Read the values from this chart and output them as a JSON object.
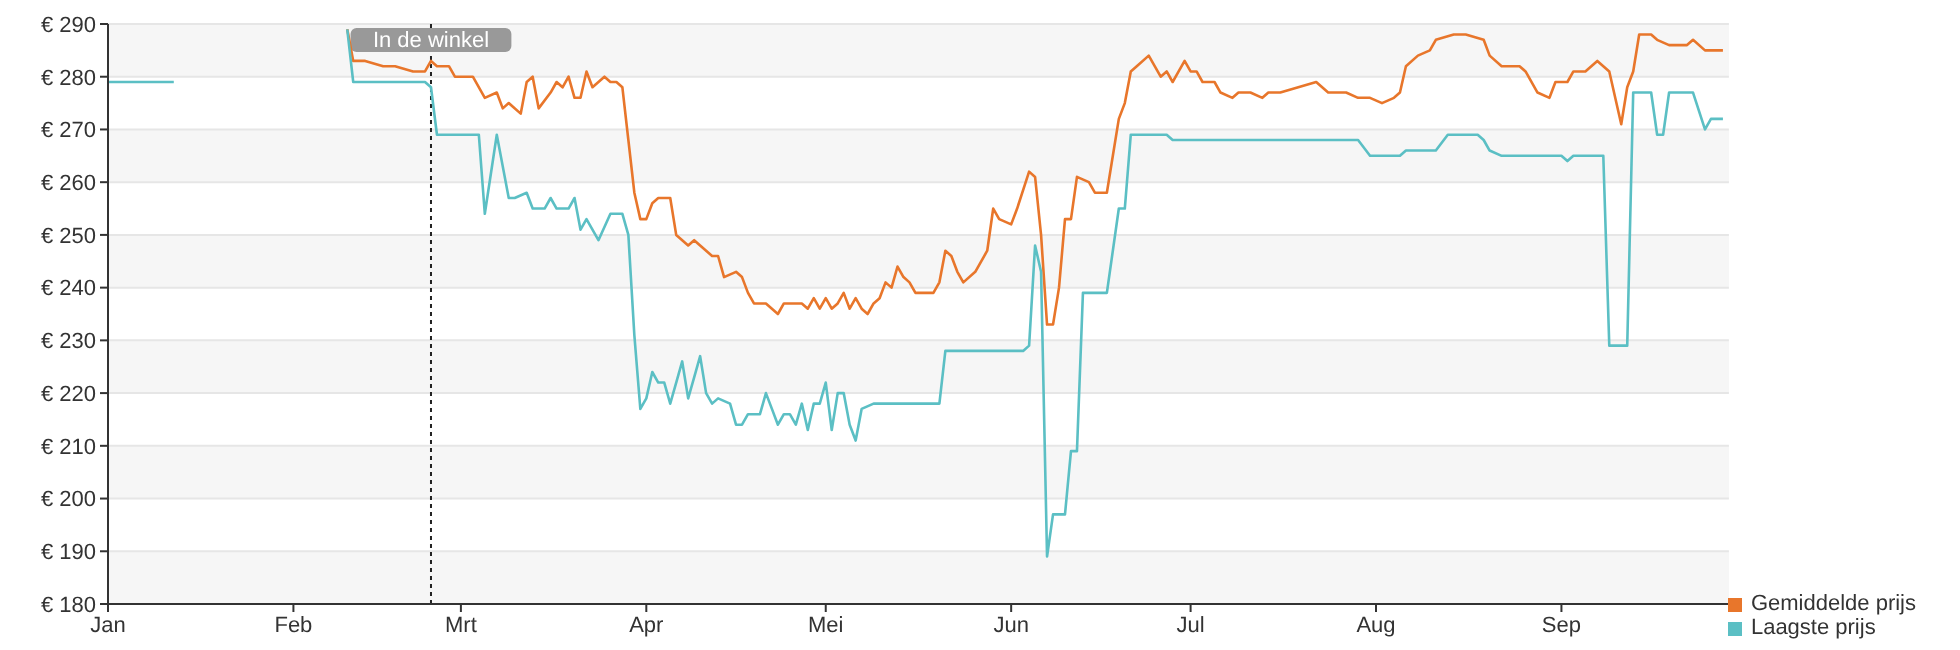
{
  "chart_data": {
    "type": "line",
    "xlim": [
      "--01-01",
      "--09-29"
    ],
    "xticks": [
      {
        "value": "--01-01",
        "label": "Jan"
      },
      {
        "value": "--02-01",
        "label": "Feb"
      },
      {
        "value": "--03-01",
        "label": "Mrt"
      },
      {
        "value": "--04-01",
        "label": "Apr"
      },
      {
        "value": "--05-01",
        "label": "Mei"
      },
      {
        "value": "--06-01",
        "label": "Jun"
      },
      {
        "value": "--07-01",
        "label": "Jul"
      },
      {
        "value": "--08-01",
        "label": "Aug"
      },
      {
        "value": "--09-01",
        "label": "Sep"
      }
    ],
    "ylim": [
      180,
      290
    ],
    "yticks": [
      {
        "value": 180,
        "label": "€ 180"
      },
      {
        "value": 190,
        "label": "€ 190"
      },
      {
        "value": 200,
        "label": "€ 200"
      },
      {
        "value": 210,
        "label": "€ 210"
      },
      {
        "value": 220,
        "label": "€ 220"
      },
      {
        "value": 230,
        "label": "€ 230"
      },
      {
        "value": 240,
        "label": "€ 240"
      },
      {
        "value": 250,
        "label": "€ 250"
      },
      {
        "value": 260,
        "label": "€ 260"
      },
      {
        "value": 270,
        "label": "€ 270"
      },
      {
        "value": 280,
        "label": "€ 280"
      },
      {
        "value": 290,
        "label": "€ 290"
      }
    ],
    "grid": "y",
    "legend": "bottom right",
    "marker": "none",
    "line_style": "solid",
    "ref_lines": [
      {
        "axis": "x",
        "value": "--02-24",
        "label": "In de winkel",
        "color": "#222222",
        "line_style": "dotted"
      }
    ],
    "series": [
      {
        "name": "Gemiddelde prijs",
        "color": "#e8762b",
        "x": [
          "--02-10",
          "--02-11",
          "--02-13",
          "--02-16",
          "--02-18",
          "--02-21",
          "--02-23",
          "--02-24",
          "--02-25",
          "--02-27",
          "--02-28",
          "--03-03",
          "--03-05",
          "--03-07",
          "--03-08",
          "--03-09",
          "--03-11",
          "--03-12",
          "--03-13",
          "--03-14",
          "--03-16",
          "--03-17",
          "--03-18",
          "--03-19",
          "--03-20",
          "--03-21",
          "--03-22",
          "--03-23",
          "--03-24",
          "--03-25",
          "--03-26",
          "--03-27",
          "--03-28",
          "--03-29",
          "--03-30",
          "--03-31",
          "--04-01",
          "--04-02",
          "--04-03",
          "--04-05",
          "--04-06",
          "--04-07",
          "--04-08",
          "--04-09",
          "--04-10",
          "--04-12",
          "--04-13",
          "--04-14",
          "--04-16",
          "--04-17",
          "--04-18",
          "--04-19",
          "--04-21",
          "--04-23",
          "--04-24",
          "--04-26",
          "--04-27",
          "--04-28",
          "--04-29",
          "--04-30",
          "--05-01",
          "--05-02",
          "--05-03",
          "--05-04",
          "--05-05",
          "--05-06",
          "--05-07",
          "--05-08",
          "--05-09",
          "--05-10",
          "--05-11",
          "--05-12",
          "--05-13",
          "--05-14",
          "--05-15",
          "--05-16",
          "--05-19",
          "--05-20",
          "--05-21",
          "--05-22",
          "--05-23",
          "--05-24",
          "--05-26",
          "--05-28",
          "--05-29",
          "--05-30",
          "--06-01",
          "--06-02",
          "--06-04",
          "--06-05",
          "--06-06",
          "--06-07",
          "--06-08",
          "--06-09",
          "--06-10",
          "--06-11",
          "--06-12",
          "--06-14",
          "--06-15",
          "--06-17",
          "--06-18",
          "--06-19",
          "--06-20",
          "--06-21",
          "--06-22",
          "--06-24",
          "--06-25",
          "--06-26",
          "--06-27",
          "--06-28",
          "--06-29",
          "--06-30",
          "--07-01",
          "--07-02",
          "--07-03",
          "--07-05",
          "--07-06",
          "--07-08",
          "--07-09",
          "--07-11",
          "--07-13",
          "--07-14",
          "--07-16",
          "--07-19",
          "--07-22",
          "--07-24",
          "--07-27",
          "--07-29",
          "--07-31",
          "--08-02",
          "--08-04",
          "--08-05",
          "--08-06",
          "--08-08",
          "--08-10",
          "--08-11",
          "--08-14",
          "--08-16",
          "--08-19",
          "--08-20",
          "--08-22",
          "--08-25",
          "--08-26",
          "--08-28",
          "--08-30",
          "--08-31",
          "--09-02",
          "--09-03",
          "--09-05",
          "--09-07",
          "--09-09",
          "--09-11",
          "--09-12",
          "--09-13",
          "--09-14",
          "--09-16",
          "--09-17",
          "--09-19",
          "--09-22",
          "--09-23",
          "--09-25",
          "--09-26",
          "--09-28"
        ],
        "values": [
          289,
          283,
          283,
          282,
          282,
          281,
          281,
          283,
          282,
          282,
          280,
          280,
          276,
          277,
          274,
          275,
          273,
          279,
          280,
          274,
          277,
          279,
          278,
          280,
          276,
          276,
          281,
          278,
          279,
          280,
          279,
          279,
          278,
          268,
          258,
          253,
          253,
          256,
          257,
          257,
          250,
          249,
          248,
          249,
          248,
          246,
          246,
          242,
          243,
          242,
          239,
          237,
          237,
          235,
          237,
          237,
          237,
          236,
          238,
          236,
          238,
          236,
          237,
          239,
          236,
          238,
          236,
          235,
          237,
          238,
          241,
          240,
          244,
          242,
          241,
          239,
          239,
          241,
          247,
          246,
          243,
          241,
          243,
          247,
          255,
          253,
          252,
          255,
          262,
          261,
          250,
          233,
          233,
          240,
          253,
          253,
          261,
          260,
          258,
          258,
          265,
          272,
          275,
          281,
          282,
          284,
          282,
          280,
          281,
          279,
          281,
          283,
          281,
          281,
          279,
          279,
          277,
          276,
          277,
          277,
          276,
          277,
          277,
          278,
          279,
          277,
          277,
          276,
          276,
          275,
          276,
          277,
          282,
          284,
          285,
          287,
          288,
          288,
          287,
          284,
          282,
          282,
          281,
          277,
          276,
          279,
          279,
          281,
          281,
          283,
          281,
          271,
          278,
          281,
          288,
          288,
          287,
          286,
          286,
          287,
          285,
          285,
          285
        ]
      },
      {
        "name": "Laagste prijs",
        "color": "#5bbfc4",
        "x": [
          "--01-01",
          "--01-12",
          "--01-26",
          "--02-10",
          "--02-11",
          "--02-23",
          "--02-24",
          "--02-25",
          "--03-04",
          "--03-05",
          "--03-07",
          "--03-09",
          "--03-10",
          "--03-12",
          "--03-13",
          "--03-15",
          "--03-16",
          "--03-17",
          "--03-19",
          "--03-20",
          "--03-21",
          "--03-22",
          "--03-24",
          "--03-26",
          "--03-28",
          "--03-29",
          "--03-30",
          "--03-31",
          "--04-01",
          "--04-02",
          "--04-03",
          "--04-04",
          "--04-05",
          "--04-06",
          "--04-07",
          "--04-08",
          "--04-09",
          "--04-10",
          "--04-11",
          "--04-12",
          "--04-13",
          "--04-15",
          "--04-16",
          "--04-17",
          "--04-18",
          "--04-20",
          "--04-21",
          "--04-22",
          "--04-23",
          "--04-24",
          "--04-25",
          "--04-26",
          "--04-27",
          "--04-28",
          "--04-29",
          "--04-30",
          "--05-01",
          "--05-02",
          "--05-03",
          "--05-04",
          "--05-05",
          "--05-06",
          "--05-07",
          "--05-09",
          "--05-20",
          "--05-21",
          "--06-03",
          "--06-04",
          "--06-05",
          "--06-06",
          "--06-07",
          "--06-08",
          "--06-10",
          "--06-11",
          "--06-12",
          "--06-13",
          "--06-17",
          "--06-19",
          "--06-20",
          "--06-21",
          "--06-27",
          "--06-28",
          "--07-29",
          "--07-31",
          "--08-05",
          "--08-06",
          "--08-11",
          "--08-13",
          "--08-18",
          "--08-19",
          "--08-20",
          "--08-22",
          "--09-01",
          "--09-02",
          "--09-03",
          "--09-08",
          "--09-09",
          "--09-12",
          "--09-13",
          "--09-16",
          "--09-17",
          "--09-18",
          "--09-19",
          "--09-23",
          "--09-25",
          "--09-26",
          "--09-28"
        ],
        "values": [
          279,
          279,
          null,
          289,
          279,
          279,
          278,
          269,
          269,
          254,
          269,
          257,
          257,
          258,
          255,
          255,
          257,
          255,
          255,
          257,
          251,
          253,
          249,
          254,
          254,
          250,
          231,
          217,
          219,
          224,
          222,
          222,
          218,
          222,
          226,
          219,
          223,
          227,
          220,
          218,
          219,
          218,
          214,
          214,
          216,
          216,
          220,
          217,
          214,
          216,
          216,
          214,
          218,
          213,
          218,
          218,
          222,
          213,
          220,
          220,
          214,
          211,
          217,
          218,
          218,
          228,
          228,
          229,
          248,
          243,
          189,
          197,
          197,
          209,
          209,
          239,
          239,
          255,
          255,
          269,
          269,
          268,
          268,
          265,
          265,
          266,
          266,
          269,
          269,
          268,
          266,
          265,
          265,
          264,
          265,
          265,
          229,
          229,
          277,
          277,
          269,
          269,
          277,
          277,
          270,
          272,
          272
        ]
      }
    ]
  }
}
